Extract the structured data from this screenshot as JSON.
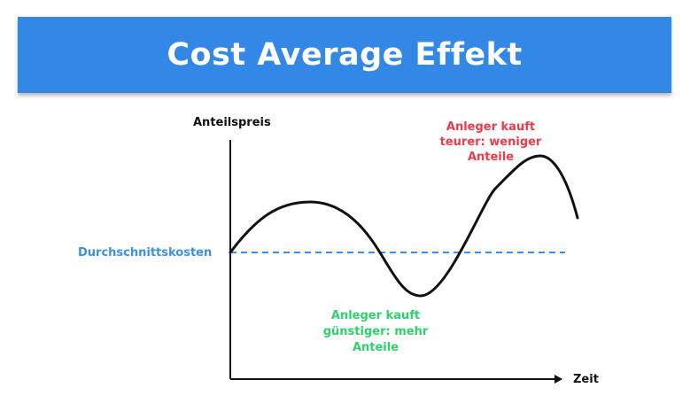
{
  "title": "Cost Average Effekt",
  "colors": {
    "banner": "#3388e6",
    "curve": "#111111",
    "average_line": "#3d8fe6",
    "expensive_text": "#ee3b4a",
    "cheap_text": "#2fd16a",
    "axis": "#111111"
  },
  "chart_data": {
    "type": "line",
    "title": "Cost Average Effekt",
    "ylabel": "Anteilspreis",
    "xlabel": "Zeit",
    "series": [
      {
        "name": "Anteilspreis",
        "shape": "wave: rises to a local peak, falls below the average to a trough, rises to a higher peak, then drops",
        "x": [
          0,
          0.24,
          0.55,
          0.9,
          1.0
        ],
        "y": [
          0,
          0.55,
          -0.45,
          1.0,
          0.38
        ]
      },
      {
        "name": "Durchschnittskosten",
        "style": "dashed",
        "x": [
          0,
          1.0
        ],
        "y": [
          0,
          0
        ]
      }
    ],
    "annotations": [
      {
        "id": "average",
        "text": "Durchschnittskosten"
      },
      {
        "id": "expensive",
        "lines": [
          "Anleger kauft",
          "teurer: weniger",
          "Anteile"
        ]
      },
      {
        "id": "cheap",
        "lines": [
          "Anleger kauft",
          "günstiger: mehr",
          "Anteile"
        ]
      }
    ]
  }
}
